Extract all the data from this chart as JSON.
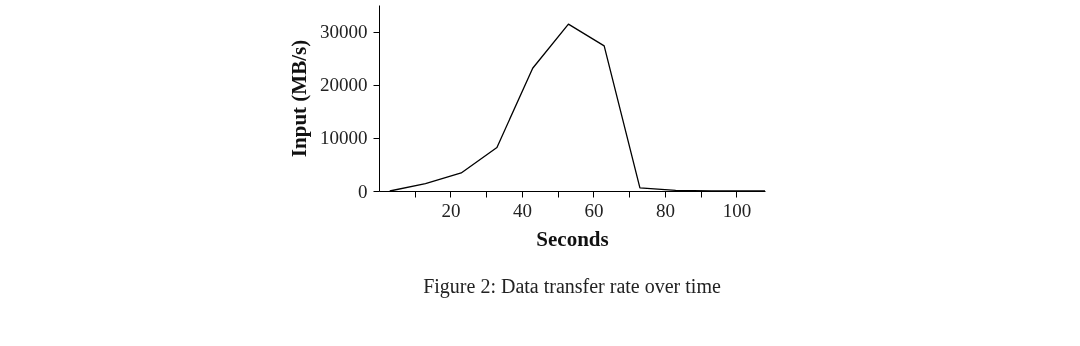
{
  "chart_data": {
    "type": "line",
    "title": "Figure 2: Data transfer rate over time",
    "xlabel": "Seconds",
    "ylabel": "Input (MB/s)",
    "x": [
      3,
      13,
      23,
      33,
      43,
      53,
      63,
      73,
      83,
      93,
      103,
      108
    ],
    "series": [
      {
        "color": "#000000",
        "values": [
          0,
          1400,
          3400,
          8200,
          23100,
          31400,
          27300,
          600,
          100,
          0,
          0,
          0
        ]
      }
    ],
    "xlim": [
      0,
      108
    ],
    "ylim": [
      0,
      35000
    ],
    "xticks": [
      {
        "value": 10,
        "label": null
      },
      20,
      {
        "value": 30,
        "label": null
      },
      40,
      {
        "value": 50,
        "label": null
      },
      60,
      {
        "value": 70,
        "label": null
      },
      80,
      {
        "value": 90,
        "label": null
      },
      100
    ],
    "yticks": [
      0,
      10000,
      20000,
      30000
    ],
    "grid": false,
    "marker": "none",
    "line_style": "solid"
  }
}
